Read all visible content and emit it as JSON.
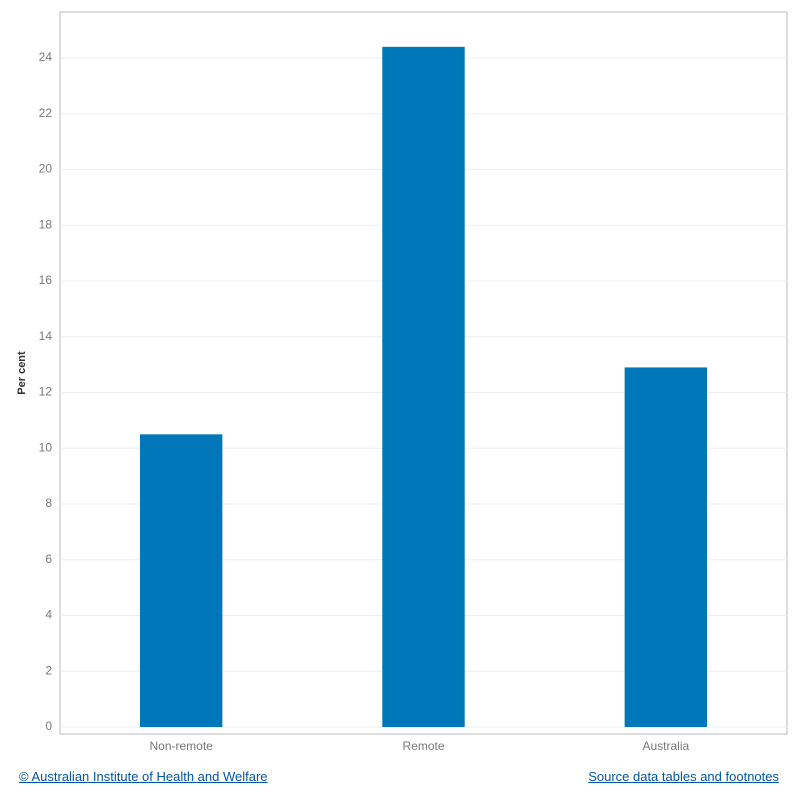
{
  "chart_data": {
    "type": "bar",
    "y_label": "Per cent",
    "categories": [
      "Non-remote",
      "Remote",
      "Australia"
    ],
    "values": [
      10.5,
      24.4,
      12.9
    ],
    "color": "#0077b8",
    "ylim": [
      -0.25,
      25.65
    ],
    "yticks": [
      0,
      2,
      4,
      6,
      8,
      10,
      12,
      14,
      16,
      18,
      20,
      22,
      24
    ],
    "grid": true
  },
  "footer": {
    "copyright": "© Australian Institute of Health and Welfare",
    "source": "Source data tables and footnotes"
  }
}
